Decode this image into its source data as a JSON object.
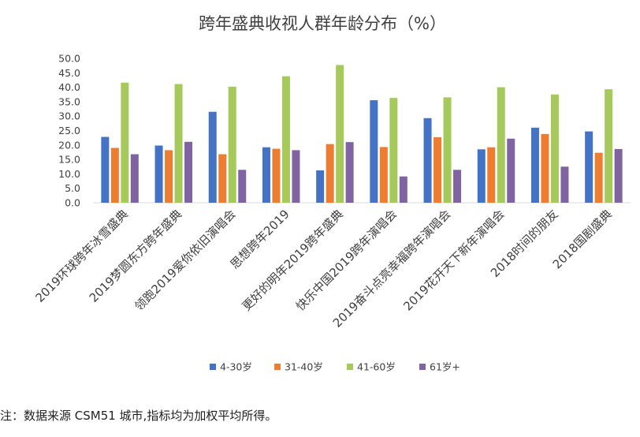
{
  "chart_data": {
    "type": "bar",
    "title": "跨年盛典收视人群年龄分布（%）",
    "xlabel": "",
    "ylabel": "",
    "ylim": [
      0,
      50
    ],
    "yticks": [
      "0.0",
      "5.0",
      "10.0",
      "15.0",
      "20.0",
      "25.0",
      "30.0",
      "35.0",
      "40.0",
      "45.0",
      "50.0"
    ],
    "grid": false,
    "legend_position": "bottom",
    "categories": [
      "2019环球跨年冰雪盛典",
      "2019梦圆东方跨年盛典",
      "领跑2019爱你依旧演唱会",
      "思想跨年2019",
      "更好的明年2019跨年盛典",
      "快乐中国2019跨年演唱会",
      "2019奋斗点亮幸福跨年演唱会",
      "2019花开天下新年演唱会",
      "2018时间的朋友",
      "2018国剧盛典"
    ],
    "series": [
      {
        "name": "4-30岁",
        "color": "#4472C4",
        "values": [
          22.8,
          19.8,
          31.5,
          19.2,
          11.2,
          35.5,
          29.3,
          18.5,
          26.0,
          24.7
        ]
      },
      {
        "name": "31-40岁",
        "color": "#ED7D31",
        "values": [
          19.0,
          18.2,
          16.8,
          18.7,
          20.3,
          19.3,
          22.7,
          19.2,
          23.8,
          17.3
        ]
      },
      {
        "name": "41-60岁",
        "color": "#A5C95A",
        "values": [
          41.6,
          41.1,
          40.2,
          43.8,
          47.7,
          36.3,
          36.5,
          40.0,
          37.5,
          39.3
        ]
      },
      {
        "name": "61岁+",
        "color": "#8064A2",
        "values": [
          16.8,
          21.1,
          11.4,
          18.2,
          21.0,
          9.1,
          11.4,
          22.2,
          12.5,
          18.6
        ]
      }
    ]
  },
  "note": "注：数据来源 CSM51 城市,指标均为加权平均所得。"
}
